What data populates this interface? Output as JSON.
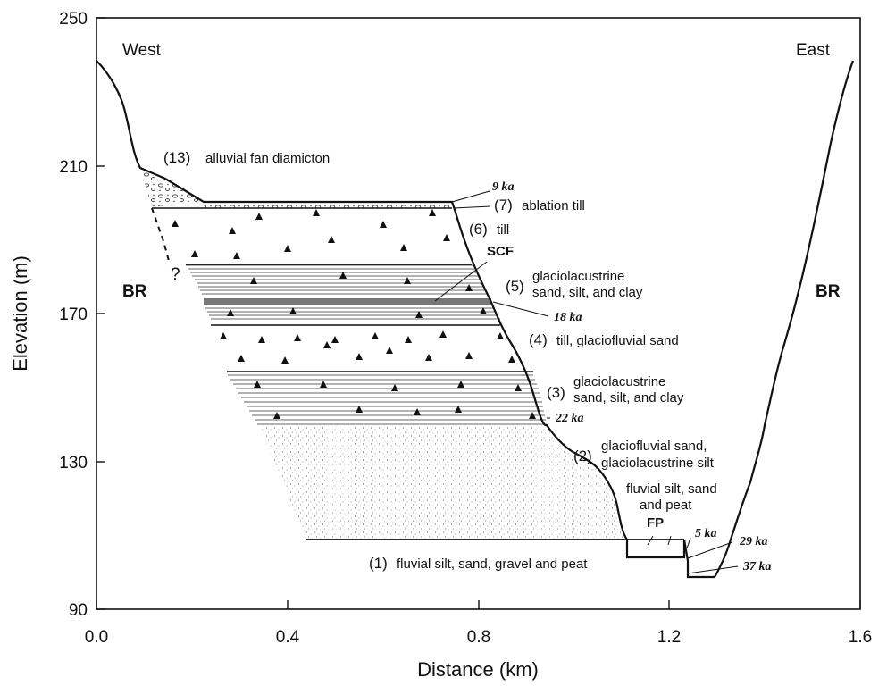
{
  "axes": {
    "xlabel": "Distance (km)",
    "ylabel": "Elevation (m)",
    "x_ticks": [
      "0.0",
      "0.4",
      "0.8",
      "1.2",
      "1.6"
    ],
    "y_ticks": [
      "250",
      "210",
      "170",
      "130",
      "90"
    ]
  },
  "directions": {
    "west": "West",
    "east": "East"
  },
  "bedrock": {
    "left": "BR",
    "right": "BR"
  },
  "query_mark": "?",
  "units": {
    "u13": {
      "num": "(13)",
      "text": "alluvial fan diamicton"
    },
    "u7": {
      "num": "(7)",
      "text": "ablation till"
    },
    "u6": {
      "num": "(6)",
      "text": "till"
    },
    "u5": {
      "num": "(5)",
      "line1": "glaciolacustrine",
      "line2": "sand, silt, and clay"
    },
    "u4": {
      "num": "(4)",
      "text": "till, glaciofluvial sand"
    },
    "u3": {
      "num": "(3)",
      "line1": "glaciolacustrine",
      "line2": "sand, silt, and clay"
    },
    "u2": {
      "num": "(2)",
      "line1": "glaciofluvial sand,",
      "line2": "glaciolacustrine silt"
    },
    "u1": {
      "num": "(1)",
      "text": "fluvial silt, sand, gravel and peat"
    }
  },
  "fluvial_top": {
    "line1": "fluvial silt, sand",
    "line2": "and peat"
  },
  "markers": {
    "scf": "SCF",
    "fp": "FP"
  },
  "ages": {
    "a9": "9 ka",
    "a18": "18 ka",
    "a22": "22 ka",
    "a5": "5 ka",
    "a29": "29 ka",
    "a37": "37 ka"
  }
}
